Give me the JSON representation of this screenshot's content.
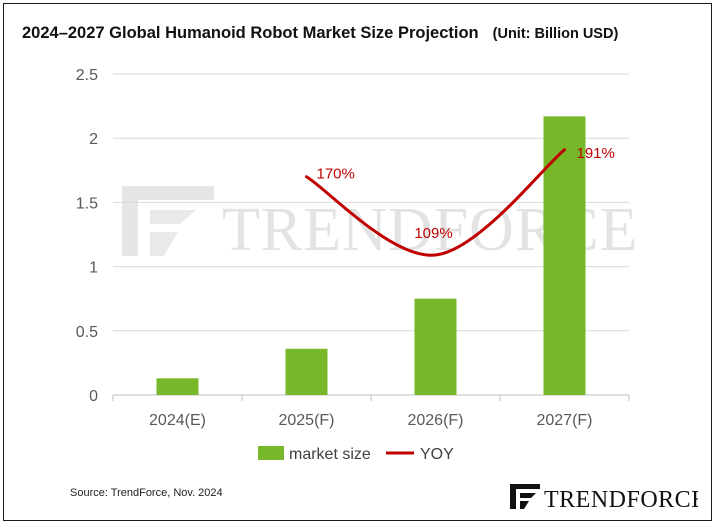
{
  "chart_data": {
    "type": "bar",
    "title": "2024–2027 Global Humanoid Robot Market Size Projection",
    "unit": "(Unit: Billion USD)",
    "categories": [
      "2024(E)",
      "2025(F)",
      "2026(F)",
      "2027(F)"
    ],
    "series": [
      {
        "name": "market size",
        "type": "bar",
        "color": "#76b82a",
        "values": [
          0.13,
          0.36,
          0.75,
          2.17
        ]
      },
      {
        "name": "YOY",
        "type": "line",
        "color": "#c00000",
        "points": [
          1.7,
          1.09,
          1.91
        ],
        "labels": [
          "170%",
          "109%",
          "191%"
        ]
      }
    ],
    "y_ticks": [
      "0",
      "0.5",
      "1",
      "1.5",
      "2",
      "2.5"
    ],
    "ylim": [
      0,
      2.5
    ],
    "grid": true,
    "legend_position": "bottom"
  },
  "watermark": "TRENDFORCE",
  "source": "Source: TrendForce, Nov. 2024",
  "brand": "TRENDFORCE"
}
